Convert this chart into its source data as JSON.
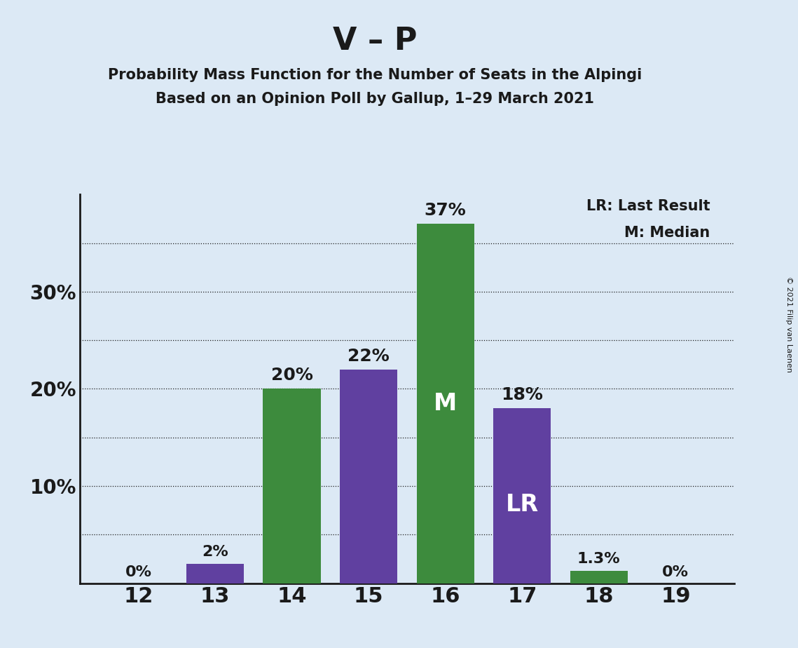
{
  "title": "V – P",
  "subtitle1": "Probability Mass Function for the Number of Seats in the Alpingi",
  "subtitle2": "Based on an Opinion Poll by Gallup, 1–29 March 2021",
  "copyright": "© 2021 Filip van Laenen",
  "categories": [
    12,
    13,
    14,
    15,
    16,
    17,
    18,
    19
  ],
  "values": [
    0.0,
    2.0,
    20.0,
    22.0,
    37.0,
    18.0,
    1.3,
    0.0
  ],
  "colors": [
    "#6040a0",
    "#6040a0",
    "#3d8b3d",
    "#6040a0",
    "#3d8b3d",
    "#6040a0",
    "#3d8b3d",
    "#6040a0"
  ],
  "bar_labels": [
    "0%",
    "2%",
    "20%",
    "22%",
    "37%",
    "18%",
    "1.3%",
    "0%"
  ],
  "median_bar": 16,
  "lr_bar": 17,
  "legend_lr": "LR: Last Result",
  "legend_m": "M: Median",
  "ylim_max": 40,
  "background_color": "#dce9f5",
  "grid_color": "#1a1a1a",
  "text_color": "#1a1a1a",
  "white": "#ffffff",
  "purple": "#6040a0",
  "green": "#3d8b3d"
}
